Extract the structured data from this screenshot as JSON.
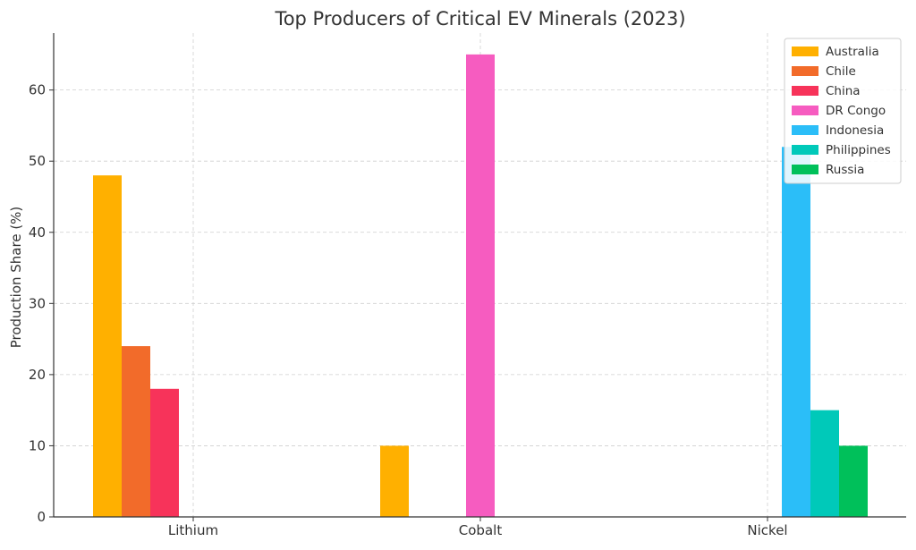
{
  "chart_data": {
    "type": "bar",
    "title": "Top Producers of Critical EV Minerals (2023)",
    "xlabel": "",
    "ylabel": "Production Share (%)",
    "ylim": [
      0,
      68
    ],
    "yticks": [
      0,
      10,
      20,
      30,
      40,
      50,
      60
    ],
    "grid": true,
    "legend_position": "top-right",
    "categories": [
      "Lithium",
      "Cobalt",
      "Nickel"
    ],
    "series": [
      {
        "name": "Australia",
        "color": "#FFB000",
        "values": [
          48,
          10,
          0
        ]
      },
      {
        "name": "Chile",
        "color": "#F26B2A",
        "values": [
          24,
          0,
          0
        ]
      },
      {
        "name": "China",
        "color": "#F7335A",
        "values": [
          18,
          0,
          0
        ]
      },
      {
        "name": "DR Congo",
        "color": "#F65CC0",
        "values": [
          0,
          65,
          0
        ]
      },
      {
        "name": "Indonesia",
        "color": "#2BBEF8",
        "values": [
          0,
          0,
          52
        ]
      },
      {
        "name": "Philippines",
        "color": "#00C9B9",
        "values": [
          0,
          0,
          15
        ]
      },
      {
        "name": "Russia",
        "color": "#00C05A",
        "values": [
          0,
          0,
          10
        ]
      }
    ]
  }
}
